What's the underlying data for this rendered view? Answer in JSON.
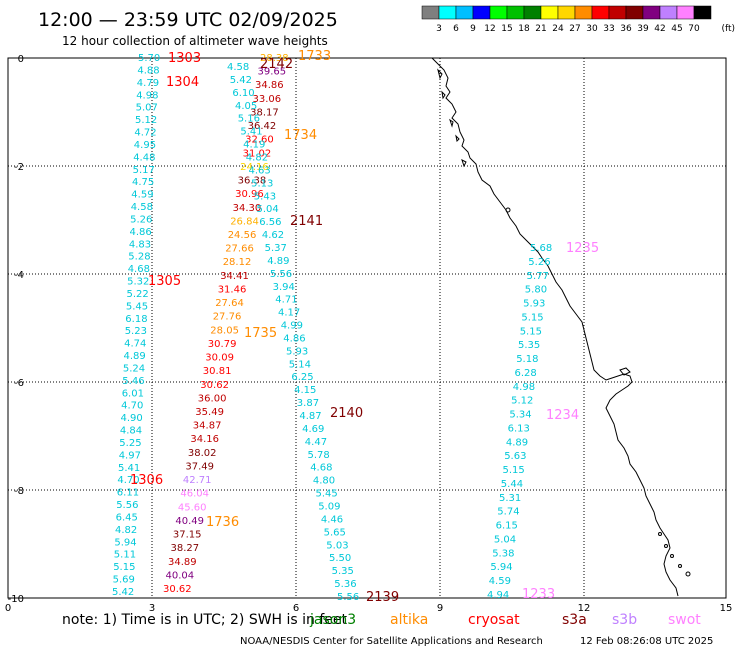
{
  "header": {
    "title": "12:00 — 23:59 UTC 02/09/2025",
    "subtitle": "12 hour collection of altimeter wave heights"
  },
  "colorbar": {
    "unit": "(ft)",
    "labels": [
      "3",
      "6",
      "9",
      "12",
      "15",
      "18",
      "21",
      "24",
      "27",
      "30",
      "33",
      "36",
      "39",
      "42",
      "45",
      "70"
    ],
    "colors": [
      "#7f7f7f",
      "#00ffff",
      "#00bfff",
      "#0000ff",
      "#00ff00",
      "#00c000",
      "#008000",
      "#ffff00",
      "#ffd700",
      "#ff8c00",
      "#ff0000",
      "#c00000",
      "#800000",
      "#800080",
      "#bf80ff",
      "#ff80ff",
      "#000000"
    ]
  },
  "axes": {
    "x_ticks": [
      "0",
      "3",
      "6",
      "9",
      "12",
      "15"
    ],
    "y_ticks": [
      "0",
      "-2",
      "-4",
      "-6",
      "-8",
      "-10"
    ]
  },
  "legend": {
    "note": "note:  1) Time is in UTC;  2) SWH is in feet",
    "satellites": [
      {
        "name": "jason3",
        "color": "#008000"
      },
      {
        "name": "altika",
        "color": "#ff8c00"
      },
      {
        "name": "cryosat",
        "color": "#ff0000"
      },
      {
        "name": "s3a",
        "color": "#800000"
      },
      {
        "name": "s3b",
        "color": "#bf80ff"
      },
      {
        "name": "swot",
        "color": "#ff80ff"
      }
    ]
  },
  "footer": {
    "credit": "NOAA/NESDIS Center for Satellite Applications and Research",
    "timestamp": "12 Feb 08:26:08 UTC 2025"
  },
  "tracks": [
    {
      "id": "track-a",
      "labels": [
        {
          "text": "1303",
          "color": "#ff0000"
        },
        {
          "text": "1304",
          "color": "#ff0000"
        },
        {
          "text": "1305",
          "color": "#ff0000"
        },
        {
          "text": "1306",
          "color": "#ff0000"
        }
      ],
      "values": [
        "5.70",
        "4.88",
        "4.79",
        "4.98",
        "5.07",
        "5.12",
        "4.72",
        "4.95",
        "4.48",
        "5.17",
        "4.75",
        "4.59",
        "4.58",
        "5.26",
        "4.86",
        "4.83",
        "5.28",
        "4.68",
        "5.32",
        "5.22",
        "5.45",
        "6.18",
        "5.23",
        "4.74",
        "4.89",
        "5.24",
        "5.46",
        "6.01",
        "4.70",
        "4.90",
        "4.84",
        "5.25",
        "4.97",
        "5.41",
        "4.70",
        "6.11",
        "5.56",
        "6.45",
        "4.82",
        "5.94",
        "5.11",
        "5.15",
        "5.69",
        "5.42"
      ]
    },
    {
      "id": "track-b",
      "labels": [
        {
          "text": "1733",
          "color": "#ff8c00"
        },
        {
          "text": "1734",
          "color": "#ff8c00"
        },
        {
          "text": "1735",
          "color": "#ff8c00"
        },
        {
          "text": "1736",
          "color": "#ff8c00"
        }
      ],
      "values": [
        {
          "v": "28.38",
          "c": "#ffb000"
        },
        {
          "v": "39.65",
          "c": "#800080"
        },
        {
          "v": "34.86",
          "c": "#c00000"
        },
        {
          "v": "33.06",
          "c": "#c00000"
        },
        {
          "v": "38.17",
          "c": "#800000"
        },
        {
          "v": "36.42",
          "c": "#800000"
        },
        {
          "v": "32.60",
          "c": "#ff0000"
        },
        {
          "v": "31.02",
          "c": "#ff0000"
        },
        {
          "v": "24.16",
          "c": "#ffd700"
        },
        {
          "v": "36.38",
          "c": "#800000"
        },
        {
          "v": "30.96",
          "c": "#ff0000"
        },
        {
          "v": "34.30",
          "c": "#c00000"
        },
        {
          "v": "26.84",
          "c": "#ffb000"
        },
        {
          "v": "24.56",
          "c": "#ff8c00"
        },
        {
          "v": "27.66",
          "c": "#ff8c00"
        },
        {
          "v": "28.12",
          "c": "#ff8c00"
        },
        {
          "v": "34.41",
          "c": "#c00000"
        },
        {
          "v": "31.46",
          "c": "#ff0000"
        },
        {
          "v": "27.64",
          "c": "#ff8c00"
        },
        {
          "v": "27.76",
          "c": "#ff8c00"
        },
        {
          "v": "28.05",
          "c": "#ff8c00"
        },
        {
          "v": "30.79",
          "c": "#ff0000"
        },
        {
          "v": "30.09",
          "c": "#ff0000"
        },
        {
          "v": "30.81",
          "c": "#ff0000"
        },
        {
          "v": "30.62",
          "c": "#ff0000"
        },
        {
          "v": "36.00",
          "c": "#c00000"
        },
        {
          "v": "35.49",
          "c": "#c00000"
        },
        {
          "v": "34.87",
          "c": "#c00000"
        },
        {
          "v": "34.16",
          "c": "#c00000"
        },
        {
          "v": "38.02",
          "c": "#800000"
        },
        {
          "v": "37.49",
          "c": "#800000"
        },
        {
          "v": "42.71",
          "c": "#bf80ff"
        },
        {
          "v": "46.04",
          "c": "#ff80ff"
        },
        {
          "v": "45.60",
          "c": "#ff80ff"
        },
        {
          "v": "40.49",
          "c": "#800080"
        },
        {
          "v": "37.15",
          "c": "#800000"
        },
        {
          "v": "38.27",
          "c": "#800000"
        },
        {
          "v": "34.89",
          "c": "#c00000"
        },
        {
          "v": "40.04",
          "c": "#800080"
        },
        {
          "v": "30.62",
          "c": "#ff0000"
        }
      ]
    },
    {
      "id": "track-c",
      "labels": [
        {
          "text": "2142",
          "color": "#800000"
        },
        {
          "text": "2141",
          "color": "#800000"
        },
        {
          "text": "2140",
          "color": "#800000"
        },
        {
          "text": "2139",
          "color": "#800000"
        }
      ],
      "values": [
        "4.58",
        "5.42",
        "6.10",
        "4.05",
        "5.16",
        "5.41",
        "4.19",
        "4.82",
        "4.63",
        "5.13",
        "5.43",
        "5.04",
        "6.56",
        "4.62",
        "5.37",
        "4.89",
        "5.56",
        "3.94",
        "4.71",
        "4.17",
        "4.99",
        "4.86",
        "5.93",
        "5.14",
        "6.25",
        "4.15",
        "3.87",
        "4.87",
        "4.69",
        "4.47",
        "5.78",
        "4.68",
        "4.80",
        "5.45",
        "5.09",
        "4.46",
        "5.65",
        "5.03",
        "5.50",
        "5.35",
        "5.36",
        "5.56"
      ]
    },
    {
      "id": "track-d",
      "labels": [
        {
          "text": "1235",
          "color": "#ff80ff"
        },
        {
          "text": "1234",
          "color": "#ff80ff"
        },
        {
          "text": "1233",
          "color": "#ff80ff"
        }
      ],
      "values": [
        "5.68",
        "5.26",
        "5.77",
        "5.80",
        "5.93",
        "5.15",
        "5.15",
        "5.35",
        "5.18",
        "6.28",
        "4.98",
        "5.12",
        "5.34",
        "6.13",
        "4.89",
        "5.63",
        "5.15",
        "5.44",
        "5.31",
        "5.74",
        "6.15",
        "5.04",
        "5.38",
        "5.94",
        "4.59",
        "4.94"
      ]
    }
  ]
}
